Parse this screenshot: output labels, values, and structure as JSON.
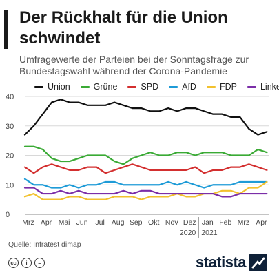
{
  "header": {
    "title": "Der Rückhalt für die Union schwindet",
    "subtitle": "Umfragewerte der Parteien bei der Sonntagsfrage zur Bundestagswahl während der Corona-Pandemie"
  },
  "footer": {
    "source": "Quelle: Infratest dimap",
    "brand": "statista",
    "license_icons": [
      "cc",
      "i",
      "="
    ]
  },
  "chart_data": {
    "type": "line",
    "categories": [
      "Mrz",
      "Apr",
      "Mai",
      "Jun",
      "Jul",
      "Aug",
      "Sep",
      "Okt",
      "Nov",
      "Dez",
      "Jan",
      "Feb",
      "Mrz",
      "Apr"
    ],
    "year_labels": [
      {
        "label": "2020",
        "after_category_index": 9
      },
      {
        "label": "2021",
        "after_category_index": 10
      }
    ],
    "x_range": [
      0,
      13.6
    ],
    "x": [
      0,
      0.5,
      1,
      1.5,
      2,
      2.5,
      3,
      3.5,
      4,
      4.5,
      5,
      5.5,
      6,
      6.5,
      7,
      7.5,
      8,
      8.5,
      9,
      9.5,
      10,
      10.5,
      11,
      11.5,
      12,
      12.5,
      13,
      13.5
    ],
    "ylim": [
      0,
      40
    ],
    "yticks": [
      0,
      10,
      20,
      30,
      40
    ],
    "grid": true,
    "legend_position": "top",
    "series": [
      {
        "name": "Union",
        "color": "#111111",
        "values": [
          27,
          30,
          34,
          38,
          39,
          38,
          38,
          37,
          37,
          37,
          38,
          37,
          36,
          36,
          35,
          35,
          36,
          35,
          36,
          36,
          35,
          34,
          34,
          33,
          33,
          29,
          27,
          28
        ]
      },
      {
        "name": "Grüne",
        "color": "#3aaa35",
        "values": [
          23,
          23,
          22,
          19,
          18,
          18,
          19,
          20,
          20,
          20,
          18,
          17,
          19,
          20,
          21,
          20,
          20,
          21,
          21,
          20,
          21,
          21,
          21,
          20,
          20,
          20,
          22,
          21
        ]
      },
      {
        "name": "SPD",
        "color": "#d32f2f",
        "values": [
          16,
          14,
          16,
          17,
          16,
          15,
          15,
          16,
          16,
          14,
          15,
          16,
          17,
          16,
          15,
          15,
          15,
          15,
          15,
          16,
          14,
          15,
          15,
          16,
          16,
          17,
          16,
          15
        ]
      },
      {
        "name": "AfD",
        "color": "#1e9bd7",
        "values": [
          12,
          10,
          10,
          9,
          9,
          10,
          9,
          10,
          10,
          11,
          11,
          10,
          10,
          10,
          10,
          10,
          11,
          10,
          11,
          10,
          9,
          10,
          10,
          10,
          11,
          11,
          11,
          11
        ]
      },
      {
        "name": "FDP",
        "color": "#f2c12e",
        "values": [
          6,
          7,
          5,
          5,
          5,
          6,
          6,
          5,
          5,
          5,
          6,
          6,
          6,
          5,
          6,
          6,
          6,
          7,
          6,
          6,
          7,
          7,
          8,
          8,
          7,
          9,
          9,
          11
        ]
      },
      {
        "name": "Linke",
        "color": "#7b2ea8",
        "values": [
          9,
          9,
          7,
          7,
          8,
          7,
          8,
          7,
          7,
          7,
          7,
          8,
          7,
          8,
          8,
          7,
          7,
          7,
          7,
          7,
          7,
          7,
          6,
          6,
          7,
          7,
          7,
          7
        ]
      }
    ]
  }
}
